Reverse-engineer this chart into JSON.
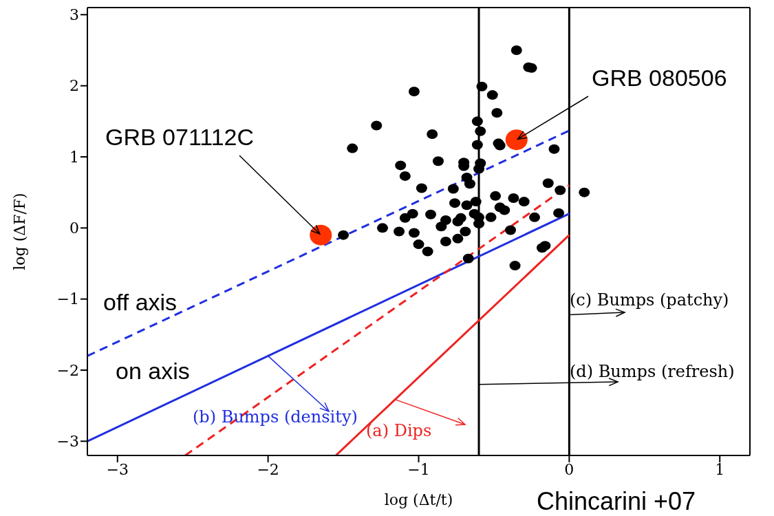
{
  "chart_data": {
    "type": "scatter",
    "xlabel": "log (Δt/t)",
    "ylabel": "log (ΔF/F)",
    "xlim": [
      -3.2,
      1.2
    ],
    "ylim": [
      -3.2,
      3.1
    ],
    "xticks": [
      -3,
      -2,
      -1,
      0,
      1
    ],
    "yticks": [
      -3,
      -2,
      -1,
      0,
      1,
      2,
      3
    ],
    "series": [
      {
        "color": "#000000",
        "marker": "circle",
        "x": [
          -0.35,
          -0.27,
          -0.25,
          -0.58,
          -0.51,
          -1.03,
          -0.48,
          -0.61,
          -0.59,
          -0.61,
          -0.47,
          -0.46,
          -0.1,
          -1.28,
          -1.44,
          -0.91,
          -0.87,
          -1.12,
          -1.09,
          -0.7,
          -0.7,
          -0.59,
          -0.6,
          -0.68,
          -0.66,
          -0.98,
          -0.77,
          -0.14,
          -0.06,
          0.1,
          -0.49,
          -0.37,
          -0.3,
          -0.76,
          -0.68,
          -0.62,
          -0.46,
          -0.43,
          -1.04,
          -1.09,
          -0.92,
          -1.24,
          -1.13,
          -1.03,
          -0.82,
          -0.85,
          -0.72,
          -0.74,
          -0.63,
          -0.6,
          -0.6,
          -0.52,
          -0.69,
          -0.74,
          -0.23,
          -0.07,
          -0.82,
          -1.0,
          -0.94,
          -0.39,
          -0.18,
          -0.16,
          -0.67,
          -0.36,
          -1.5
        ],
        "values": [
          2.5,
          2.26,
          2.25,
          1.99,
          1.87,
          1.92,
          1.62,
          1.5,
          1.36,
          1.17,
          1.19,
          1.16,
          1.11,
          1.44,
          1.12,
          1.32,
          0.94,
          0.88,
          0.73,
          0.92,
          0.87,
          0.91,
          0.83,
          0.71,
          0.62,
          0.56,
          0.55,
          0.63,
          0.53,
          0.5,
          0.45,
          0.42,
          0.37,
          0.35,
          0.32,
          0.37,
          0.29,
          0.25,
          0.2,
          0.14,
          0.19,
          0.0,
          -0.05,
          -0.07,
          0.11,
          0.02,
          0.14,
          0.09,
          0.2,
          0.15,
          0.06,
          0.15,
          -0.05,
          -0.15,
          0.15,
          0.21,
          -0.19,
          -0.23,
          -0.33,
          -0.03,
          -0.28,
          -0.25,
          -0.43,
          -0.53,
          -0.1
        ]
      },
      {
        "color": "#ff3300",
        "marker": "circle",
        "x": [
          -1.65,
          -0.35
        ],
        "values": [
          -0.1,
          1.24
        ]
      },
      {
        "type": "line",
        "name": "off axis",
        "color": "#1f2ee0",
        "marker": "none",
        "line_style": "dashed",
        "x": [
          -3.2,
          0
        ],
        "values": [
          -1.8,
          1.37
        ]
      },
      {
        "type": "line",
        "name": "on axis",
        "color": "#1f2ee0",
        "marker": "none",
        "line_style": "solid",
        "x": [
          -3.2,
          0
        ],
        "values": [
          -3.0,
          0.2
        ]
      },
      {
        "type": "line",
        "color": "#ee2222",
        "marker": "none",
        "line_style": "dashed",
        "x": [
          -2.55,
          0
        ],
        "values": [
          -3.2,
          0.6
        ]
      },
      {
        "type": "line",
        "color": "#ee2222",
        "marker": "none",
        "line_style": "solid",
        "x": [
          -1.55,
          0
        ],
        "values": [
          -3.2,
          -0.1
        ]
      }
    ],
    "ref_lines": [
      {
        "axis": "x",
        "value": -0.6,
        "color": "#000000"
      },
      {
        "axis": "x",
        "value": 0,
        "color": "#000000"
      }
    ],
    "annotations": [
      {
        "text": "(a) Dips",
        "x": -1.16,
        "y": -2.41
      },
      {
        "text": "(b) Bumps (density)",
        "x": -2,
        "y": -1.8
      },
      {
        "text": "(c) Bumps (patchy)",
        "x": 0,
        "y": -1.22
      },
      {
        "text": "(d) Bumps (refresh)",
        "x": -0.6,
        "y": -2.2
      },
      "Chincarini +07",
      {
        "text": "GRB 071112C",
        "x": -1.65,
        "y": -0.1
      },
      {
        "text": "GRB 080506",
        "x": -0.35,
        "y": 1.24
      }
    ]
  }
}
